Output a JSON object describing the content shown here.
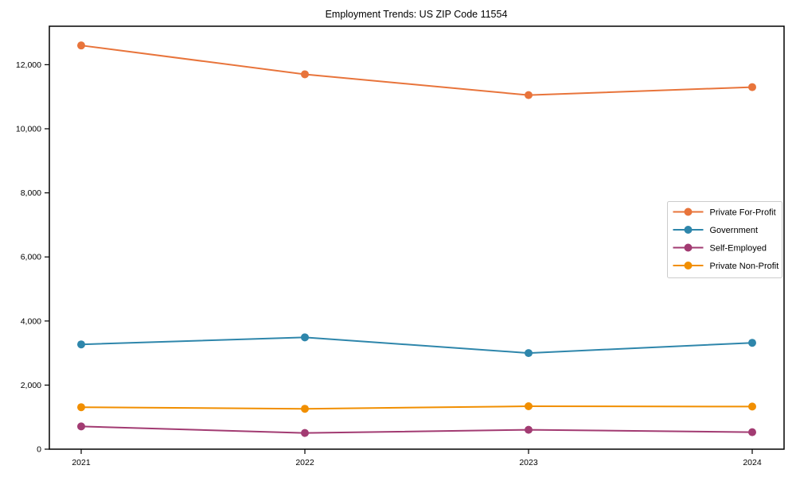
{
  "chart_data": {
    "type": "line",
    "title": "Employment Trends: US ZIP Code 11554",
    "categories": [
      "2021",
      "2022",
      "2023",
      "2024"
    ],
    "series": [
      {
        "name": "Private For-Profit",
        "color": "#E8743B",
        "values": [
          12600,
          11700,
          11050,
          11300
        ]
      },
      {
        "name": "Government",
        "color": "#2E86AB",
        "values": [
          3270,
          3490,
          3000,
          3320
        ]
      },
      {
        "name": "Self-Employed",
        "color": "#A23B72",
        "values": [
          710,
          505,
          605,
          530
        ]
      },
      {
        "name": "Private Non-Profit",
        "color": "#F18F01",
        "values": [
          1310,
          1260,
          1340,
          1330
        ]
      }
    ],
    "xlabel": "",
    "ylabel": "",
    "ylim": [
      0,
      13200
    ],
    "yticks": [
      0,
      2000,
      4000,
      6000,
      8000,
      10000,
      12000
    ],
    "ytick_labels": [
      "0",
      "2,000",
      "4,000",
      "6,000",
      "8,000",
      "10,000",
      "12,000"
    ],
    "grid": false,
    "legend_position": "center right",
    "marker": "circle",
    "axis_color": "#000000",
    "background_color": "#ffffff",
    "legend_border_color": "#cccccc"
  }
}
